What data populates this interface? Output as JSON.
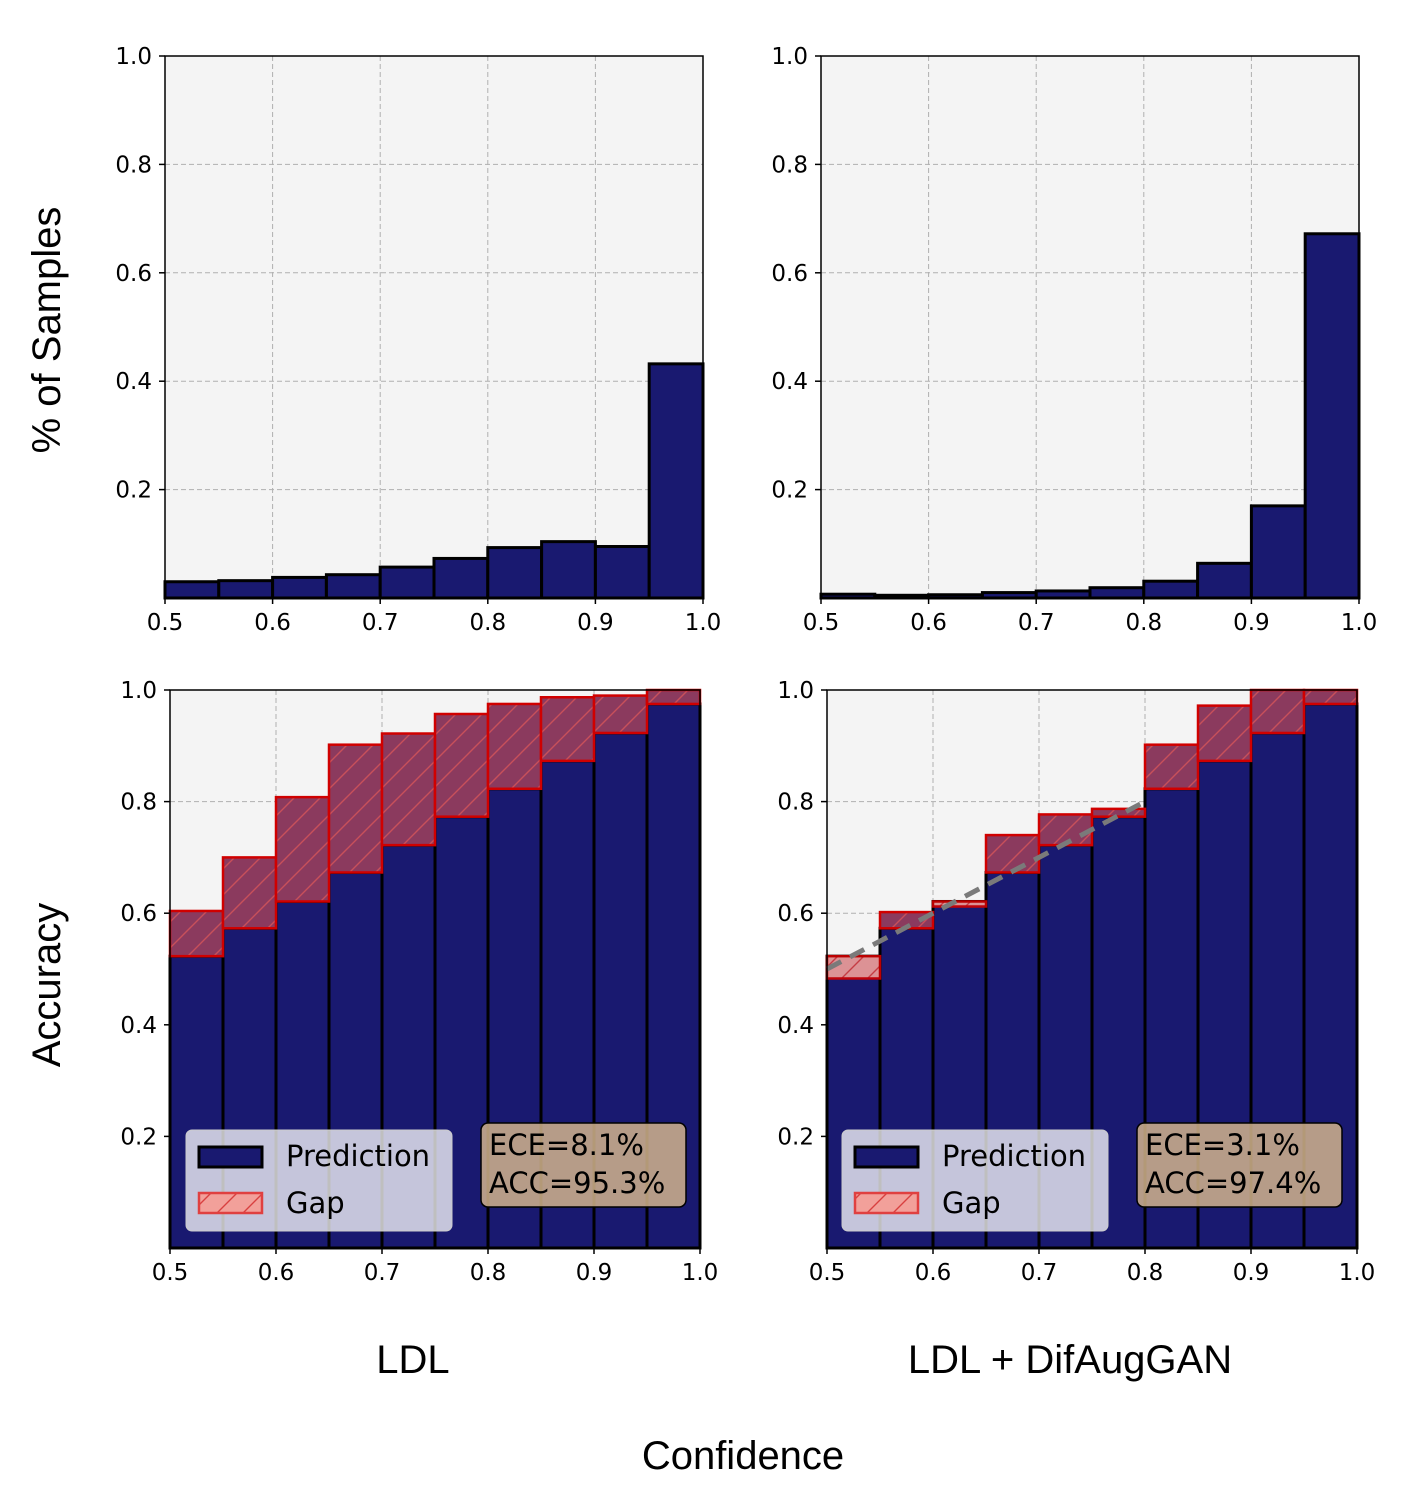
{
  "figure": {
    "ylabel_top": "% of Samples",
    "ylabel_bottom": "Accuracy",
    "xlabel": "Confidence",
    "column_labels": [
      "LDL",
      "LDL + DifAugGAN"
    ]
  },
  "colors": {
    "prediction": "#191970",
    "gap_fill": "#f08080",
    "gap_edge": "#d00000",
    "plot_background": "#f4f4f4",
    "grid": "#b0b0b0",
    "diagonal": "#7a7a7a",
    "stats_box": "#d2b48c"
  },
  "legend": {
    "prediction_label": "Prediction",
    "gap_label": "Gap"
  },
  "chart_data": [
    {
      "type": "bar",
      "panel": "top-left",
      "xlim": [
        0.5,
        1.0
      ],
      "ylim": [
        0,
        1.0
      ],
      "xticks": [
        "0.5",
        "0.6",
        "0.7",
        "0.8",
        "0.9",
        "1.0"
      ],
      "yticks": [
        "0.2",
        "0.4",
        "0.6",
        "0.8",
        "1.0"
      ],
      "bin_width": 0.05,
      "bins": [
        0.5,
        0.55,
        0.6,
        0.65,
        0.7,
        0.75,
        0.8,
        0.85,
        0.9,
        0.95
      ],
      "series": [
        {
          "values": [
            0.03,
            0.032,
            0.038,
            0.043,
            0.057,
            0.073,
            0.093,
            0.104,
            0.095,
            0.432
          ]
        }
      ],
      "grid": true
    },
    {
      "type": "bar",
      "panel": "top-right",
      "xlim": [
        0.5,
        1.0
      ],
      "ylim": [
        0,
        1.0
      ],
      "xticks": [
        "0.5",
        "0.6",
        "0.7",
        "0.8",
        "0.9",
        "1.0"
      ],
      "yticks": [
        "0.2",
        "0.4",
        "0.6",
        "0.8",
        "1.0"
      ],
      "bin_width": 0.05,
      "bins": [
        0.5,
        0.55,
        0.6,
        0.65,
        0.7,
        0.75,
        0.8,
        0.85,
        0.9,
        0.95
      ],
      "series": [
        {
          "values": [
            0.007,
            0.005,
            0.006,
            0.01,
            0.013,
            0.019,
            0.031,
            0.064,
            0.17,
            0.672
          ]
        }
      ],
      "grid": true
    },
    {
      "type": "bar",
      "panel": "bottom-left",
      "xlim": [
        0.5,
        1.0
      ],
      "ylim": [
        0,
        1.0
      ],
      "xticks": [
        "0.5",
        "0.6",
        "0.7",
        "0.8",
        "0.9",
        "1.0"
      ],
      "yticks": [
        "0.2",
        "0.4",
        "0.6",
        "0.8",
        "1.0"
      ],
      "bin_width": 0.05,
      "bins": [
        0.5,
        0.55,
        0.6,
        0.65,
        0.7,
        0.75,
        0.8,
        0.85,
        0.9,
        0.95
      ],
      "series": [
        {
          "name": "Prediction",
          "values": [
            0.523,
            0.573,
            0.621,
            0.673,
            0.722,
            0.773,
            0.823,
            0.873,
            0.923,
            0.975
          ]
        },
        {
          "name": "Gap",
          "values": [
            0.604,
            0.7,
            0.808,
            0.902,
            0.922,
            0.957,
            0.975,
            0.987,
            0.99,
            1.0
          ]
        }
      ],
      "stats": {
        "ece": "ECE=8.1%",
        "acc": "ACC=95.3%"
      },
      "legend_position": "lower-left",
      "grid": true
    },
    {
      "type": "bar",
      "panel": "bottom-right",
      "xlim": [
        0.5,
        1.0
      ],
      "ylim": [
        0,
        1.0
      ],
      "xticks": [
        "0.5",
        "0.6",
        "0.7",
        "0.8",
        "0.9",
        "1.0"
      ],
      "yticks": [
        "0.2",
        "0.4",
        "0.6",
        "0.8",
        "1.0"
      ],
      "bin_width": 0.05,
      "bins": [
        0.5,
        0.55,
        0.6,
        0.65,
        0.7,
        0.75,
        0.8,
        0.85,
        0.9,
        0.95
      ],
      "series": [
        {
          "name": "Prediction",
          "values": [
            0.523,
            0.573,
            0.621,
            0.673,
            0.722,
            0.773,
            0.823,
            0.873,
            0.923,
            0.975
          ]
        },
        {
          "name": "Gap",
          "values": [
            0.483,
            0.602,
            0.612,
            0.74,
            0.777,
            0.787,
            0.902,
            0.972,
            1.0,
            1.0
          ]
        }
      ],
      "diagonal": {
        "x": [
          0.5,
          0.8
        ],
        "y": [
          0.5,
          0.8
        ]
      },
      "stats": {
        "ece": "ECE=3.1%",
        "acc": "ACC=97.4%"
      },
      "legend_position": "lower-left",
      "grid": true
    }
  ]
}
